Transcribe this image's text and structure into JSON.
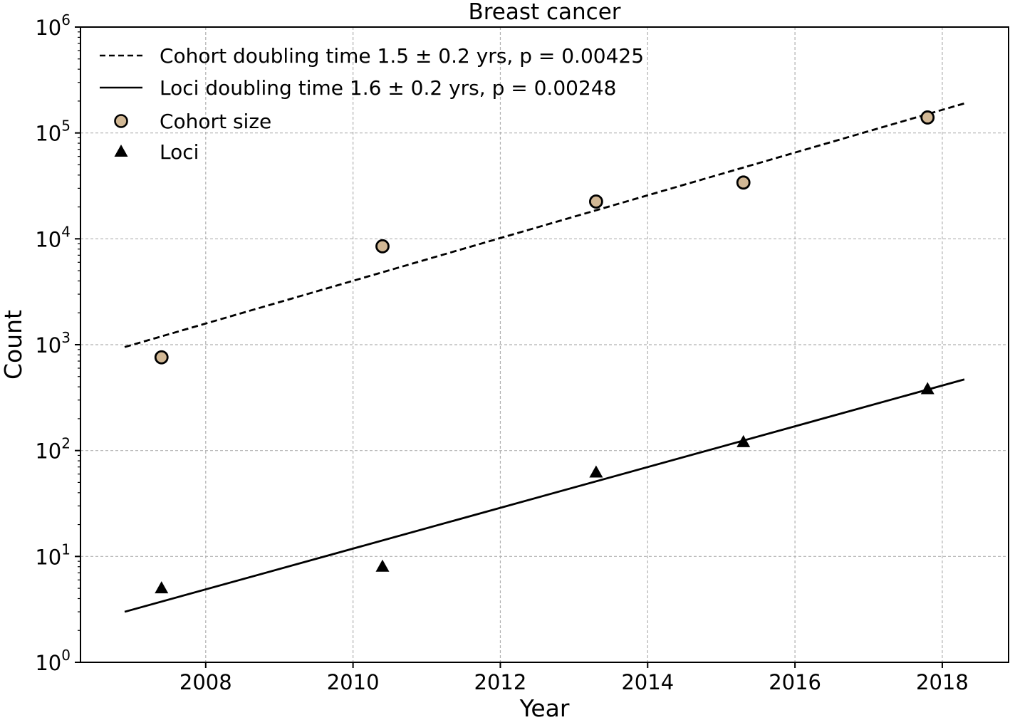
{
  "chart_data": {
    "type": "scatter",
    "title": "Breast cancer",
    "xlabel": "Year",
    "ylabel": "Count",
    "xlim": [
      2006.3,
      2018.9
    ],
    "ylim": [
      1,
      1000000
    ],
    "yscale": "log",
    "grid": true,
    "legend_position": "top-left",
    "x_ticks": [
      {
        "value": 2008,
        "label": "2008"
      },
      {
        "value": 2010,
        "label": "2010"
      },
      {
        "value": 2012,
        "label": "2012"
      },
      {
        "value": 2014,
        "label": "2014"
      },
      {
        "value": 2016,
        "label": "2016"
      },
      {
        "value": 2018,
        "label": "2018"
      }
    ],
    "y_ticks": [
      {
        "value": 1,
        "base": "10",
        "exp": "0"
      },
      {
        "value": 10,
        "base": "10",
        "exp": "1"
      },
      {
        "value": 100,
        "base": "10",
        "exp": "2"
      },
      {
        "value": 1000,
        "base": "10",
        "exp": "3"
      },
      {
        "value": 10000,
        "base": "10",
        "exp": "4"
      },
      {
        "value": 100000,
        "base": "10",
        "exp": "5"
      },
      {
        "value": 1000000,
        "base": "10",
        "exp": "6"
      }
    ],
    "series": [
      {
        "name": "Cohort doubling time 1.5 ± 0.2 yrs, p = 0.00425",
        "kind": "fit-line",
        "style": "dashed",
        "color": "#000000",
        "x": [
          2006.9,
          2018.3
        ],
        "values": [
          950,
          190000
        ]
      },
      {
        "name": "Loci doubling time 1.6 ± 0.2 yrs, p = 0.00248",
        "kind": "fit-line",
        "style": "solid",
        "color": "#000000",
        "x": [
          2006.9,
          2018.3
        ],
        "values": [
          3,
          470
        ]
      },
      {
        "name": "Cohort size",
        "kind": "points",
        "marker": "circle",
        "color": "#d2b895",
        "x": [
          2007.4,
          2010.4,
          2013.3,
          2015.3,
          2017.8
        ],
        "values": [
          760,
          8500,
          22500,
          34000,
          140000
        ]
      },
      {
        "name": "Loci",
        "kind": "points",
        "marker": "triangle",
        "color": "#000000",
        "x": [
          2007.4,
          2010.4,
          2013.3,
          2015.3,
          2017.8
        ],
        "values": [
          5,
          8,
          62,
          120,
          380
        ]
      }
    ]
  }
}
